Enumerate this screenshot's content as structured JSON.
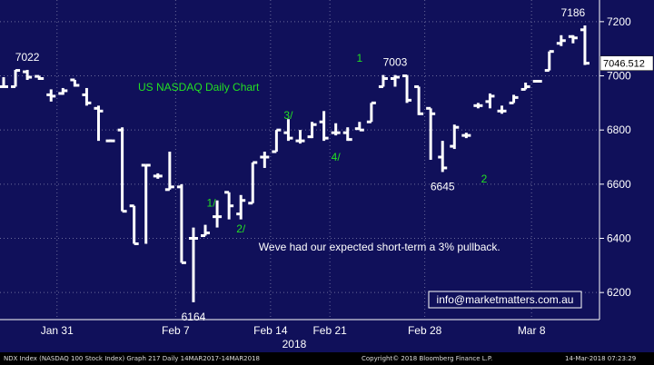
{
  "chart_data": {
    "type": "ohlc",
    "title": "US NASDAQ Daily Chart",
    "x_year": "2018",
    "x_ticks": [
      "Jan 31",
      "Feb 7",
      "Feb 14",
      "Feb 21",
      "Feb 28",
      "Mar 8"
    ],
    "ylim": [
      6100,
      7280
    ],
    "y_ticks": [
      6200,
      6400,
      6600,
      6800,
      7000,
      7200
    ],
    "grid": true,
    "last_price": "7046.512",
    "bars": [
      {
        "o": 6960,
        "h": 6995,
        "l": 6960,
        "c": 6960
      },
      {
        "o": 6960,
        "h": 7022,
        "l": 6960,
        "c": 7020
      },
      {
        "o": 7015,
        "h": 7022,
        "l": 6985,
        "c": 6995
      },
      {
        "o": 6998,
        "h": 7000,
        "l": 6985,
        "c": 6990
      },
      {
        "o": 6930,
        "h": 6950,
        "l": 6905,
        "c": 6925
      },
      {
        "o": 6935,
        "h": 6955,
        "l": 6930,
        "c": 6945
      },
      {
        "o": 6985,
        "h": 6985,
        "l": 6960,
        "c": 6965
      },
      {
        "o": 6930,
        "h": 6955,
        "l": 6890,
        "c": 6900
      },
      {
        "o": 6880,
        "h": 6890,
        "l": 6760,
        "c": 6870
      },
      {
        "o": 6760,
        "h": 6765,
        "l": 6760,
        "c": 6760
      },
      {
        "o": 6800,
        "h": 6810,
        "l": 6500,
        "c": 6500
      },
      {
        "o": 6520,
        "h": 6520,
        "l": 6380,
        "c": 6380
      },
      {
        "o": 6670,
        "h": 6670,
        "l": 6380,
        "c": 6670
      },
      {
        "o": 6630,
        "h": 6640,
        "l": 6620,
        "c": 6630
      },
      {
        "o": 6580,
        "h": 6720,
        "l": 6580,
        "c": 6590
      },
      {
        "o": 6590,
        "h": 6600,
        "l": 6310,
        "c": 6310
      },
      {
        "o": 6400,
        "h": 6440,
        "l": 6164,
        "c": 6400
      },
      {
        "o": 6410,
        "h": 6450,
        "l": 6410,
        "c": 6420
      },
      {
        "o": 6480,
        "h": 6540,
        "l": 6440,
        "c": 6480
      },
      {
        "o": 6570,
        "h": 6570,
        "l": 6470,
        "c": 6520
      },
      {
        "o": 6490,
        "h": 6560,
        "l": 6470,
        "c": 6540
      },
      {
        "o": 6530,
        "h": 6680,
        "l": 6530,
        "c": 6680
      },
      {
        "o": 6700,
        "h": 6720,
        "l": 6660,
        "c": 6700
      },
      {
        "o": 6720,
        "h": 6800,
        "l": 6720,
        "c": 6800
      },
      {
        "o": 6790,
        "h": 6840,
        "l": 6760,
        "c": 6770
      },
      {
        "o": 6760,
        "h": 6800,
        "l": 6750,
        "c": 6760
      },
      {
        "o": 6775,
        "h": 6830,
        "l": 6770,
        "c": 6820
      },
      {
        "o": 6830,
        "h": 6870,
        "l": 6760,
        "c": 6770
      },
      {
        "o": 6790,
        "h": 6825,
        "l": 6780,
        "c": 6790
      },
      {
        "o": 6790,
        "h": 6810,
        "l": 6760,
        "c": 6765
      },
      {
        "o": 6805,
        "h": 6830,
        "l": 6800,
        "c": 6800
      },
      {
        "o": 6830,
        "h": 6900,
        "l": 6830,
        "c": 6900
      },
      {
        "o": 6960,
        "h": 7003,
        "l": 6960,
        "c": 6990
      },
      {
        "o": 6990,
        "h": 7003,
        "l": 6960,
        "c": 6995
      },
      {
        "o": 7000,
        "h": 7003,
        "l": 6900,
        "c": 6910
      },
      {
        "o": 6960,
        "h": 6960,
        "l": 6855,
        "c": 6860
      },
      {
        "o": 6880,
        "h": 6880,
        "l": 6690,
        "c": 6860
      },
      {
        "o": 6700,
        "h": 6760,
        "l": 6645,
        "c": 6660
      },
      {
        "o": 6740,
        "h": 6820,
        "l": 6730,
        "c": 6810
      },
      {
        "o": 6780,
        "h": 6790,
        "l": 6770,
        "c": 6780
      },
      {
        "o": 6890,
        "h": 6900,
        "l": 6880,
        "c": 6890
      },
      {
        "o": 6905,
        "h": 6935,
        "l": 6880,
        "c": 6925
      },
      {
        "o": 6870,
        "h": 6890,
        "l": 6860,
        "c": 6870
      },
      {
        "o": 6900,
        "h": 6930,
        "l": 6900,
        "c": 6920
      },
      {
        "o": 6950,
        "h": 6975,
        "l": 6950,
        "c": 6960
      },
      {
        "o": 6980,
        "h": 6985,
        "l": 6975,
        "c": 6980
      },
      {
        "o": 7020,
        "h": 7090,
        "l": 7020,
        "c": 7090
      },
      {
        "o": 7120,
        "h": 7150,
        "l": 7110,
        "c": 7130
      },
      {
        "o": 7145,
        "h": 7150,
        "l": 7120,
        "c": 7140
      },
      {
        "o": 7170,
        "h": 7186,
        "l": 7040,
        "c": 7046.512
      }
    ],
    "annotations": [
      {
        "text": "7022",
        "x": 2,
        "y": 7022,
        "place": "above",
        "color": "#ffffff"
      },
      {
        "text": "6164",
        "x": 16,
        "y": 6164,
        "place": "below",
        "color": "#ffffff"
      },
      {
        "text": "7003",
        "x": 33,
        "y": 7003,
        "place": "above",
        "color": "#ffffff"
      },
      {
        "text": "6645",
        "x": 37,
        "y": 6645,
        "place": "below",
        "color": "#ffffff"
      },
      {
        "text": "7186",
        "x": 48,
        "y": 7186,
        "place": "above",
        "color": "#ffffff"
      },
      {
        "text": "1",
        "x": 30,
        "y": 7065,
        "place": "at",
        "color": "#22e022"
      },
      {
        "text": "1/",
        "x": 17.5,
        "y": 6530,
        "place": "at",
        "color": "#22e022"
      },
      {
        "text": "2/",
        "x": 20,
        "y": 6435,
        "place": "at",
        "color": "#22e022"
      },
      {
        "text": "3/",
        "x": 24,
        "y": 6855,
        "place": "at",
        "color": "#22e022"
      },
      {
        "text": "4/",
        "x": 28,
        "y": 6700,
        "place": "at",
        "color": "#22e022"
      },
      {
        "text": "2",
        "x": 40.5,
        "y": 6620,
        "place": "at",
        "color": "#22e022"
      },
      {
        "text": "Weve had our expected short-term a 3% pullback.",
        "x": 21.5,
        "y": 6355,
        "place": "right",
        "color": "#ffffff"
      }
    ],
    "contact": "info@marketmatters.com.au",
    "colors": {
      "background": "#10105a",
      "bars": "#ffffff",
      "wave_labels": "#22e022",
      "title": "#22e022",
      "grid": "#6a6a9a"
    }
  },
  "footer": {
    "left": "NDX Index (NASDAQ 100 Stock Index) Graph 217  Daily 14MAR2017-14MAR2018",
    "center": "Copyright© 2018 Bloomberg Finance L.P.",
    "right": "14-Mar-2018 07:23:29"
  }
}
